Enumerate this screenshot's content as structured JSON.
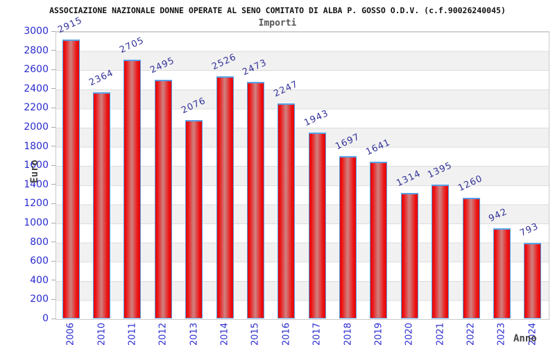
{
  "chart_data": {
    "type": "bar",
    "title": "ASSOCIAZIONE NAZIONALE DONNE OPERATE AL SENO COMITATO DI ALBA P. GOSSO O.D.V. (c.f.90026240045)",
    "subtitle": "Importi",
    "xlabel": "Anno",
    "ylabel": "Euro",
    "categories": [
      "2006",
      "2010",
      "2011",
      "2012",
      "2013",
      "2014",
      "2015",
      "2016",
      "2017",
      "2018",
      "2019",
      "2020",
      "2021",
      "2022",
      "2023",
      "2024"
    ],
    "values": [
      2915,
      2364,
      2705,
      2495,
      2076,
      2526,
      2473,
      2247,
      1943,
      1697,
      1641,
      1314,
      1395,
      1260,
      942,
      793
    ],
    "ylim": [
      0,
      3000
    ],
    "ytick_step": 200,
    "grid": "horizontal-gridlines-with-alternating-bands",
    "legend": "none",
    "colors": {
      "bar_fill": "#ee1111",
      "bar_highlight": "#d08282",
      "bar_border": "#56a0e8",
      "tick_label": "#2a2ad0",
      "value_label": "#333399",
      "band": "#f1f1f1",
      "gridline": "#dcdcdc",
      "axis_label": "#444444",
      "title": "#111111"
    }
  }
}
